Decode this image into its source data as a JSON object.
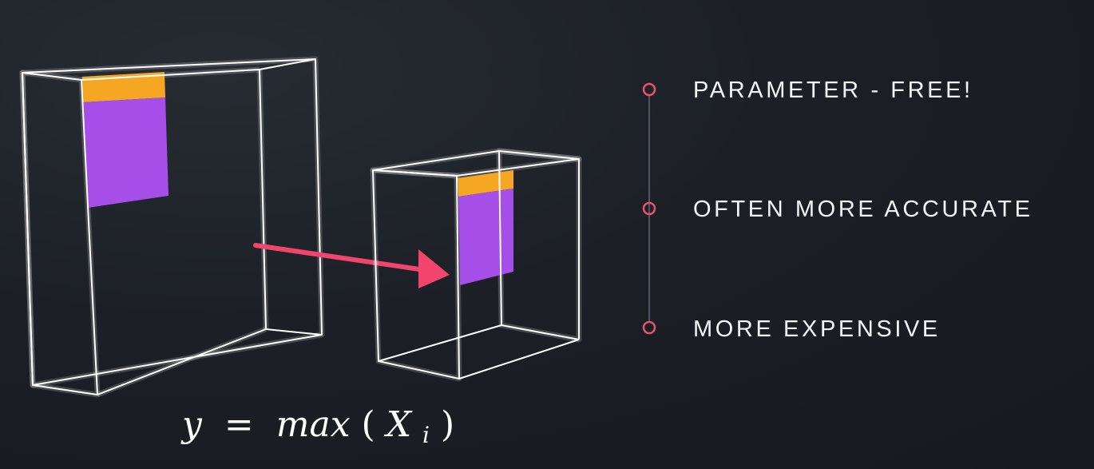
{
  "formula": {
    "lhs": "y",
    "equals": "=",
    "func": "max",
    "open": "(",
    "var": "X",
    "sub": "i",
    "close": ")"
  },
  "bullets": [
    {
      "label": "PARAMETER - FREE!"
    },
    {
      "label": "OFTEN MORE ACCURATE"
    },
    {
      "label": "MORE EXPENSIVE"
    }
  ],
  "colors": {
    "wireframe": "#ffffff",
    "patch_top": "#f5a623",
    "patch_body": "#a64ee8",
    "arrow": "#f2456e",
    "bullet_dot": "#e8516f",
    "timeline": "#4e5663",
    "text": "#f4f5f7"
  }
}
